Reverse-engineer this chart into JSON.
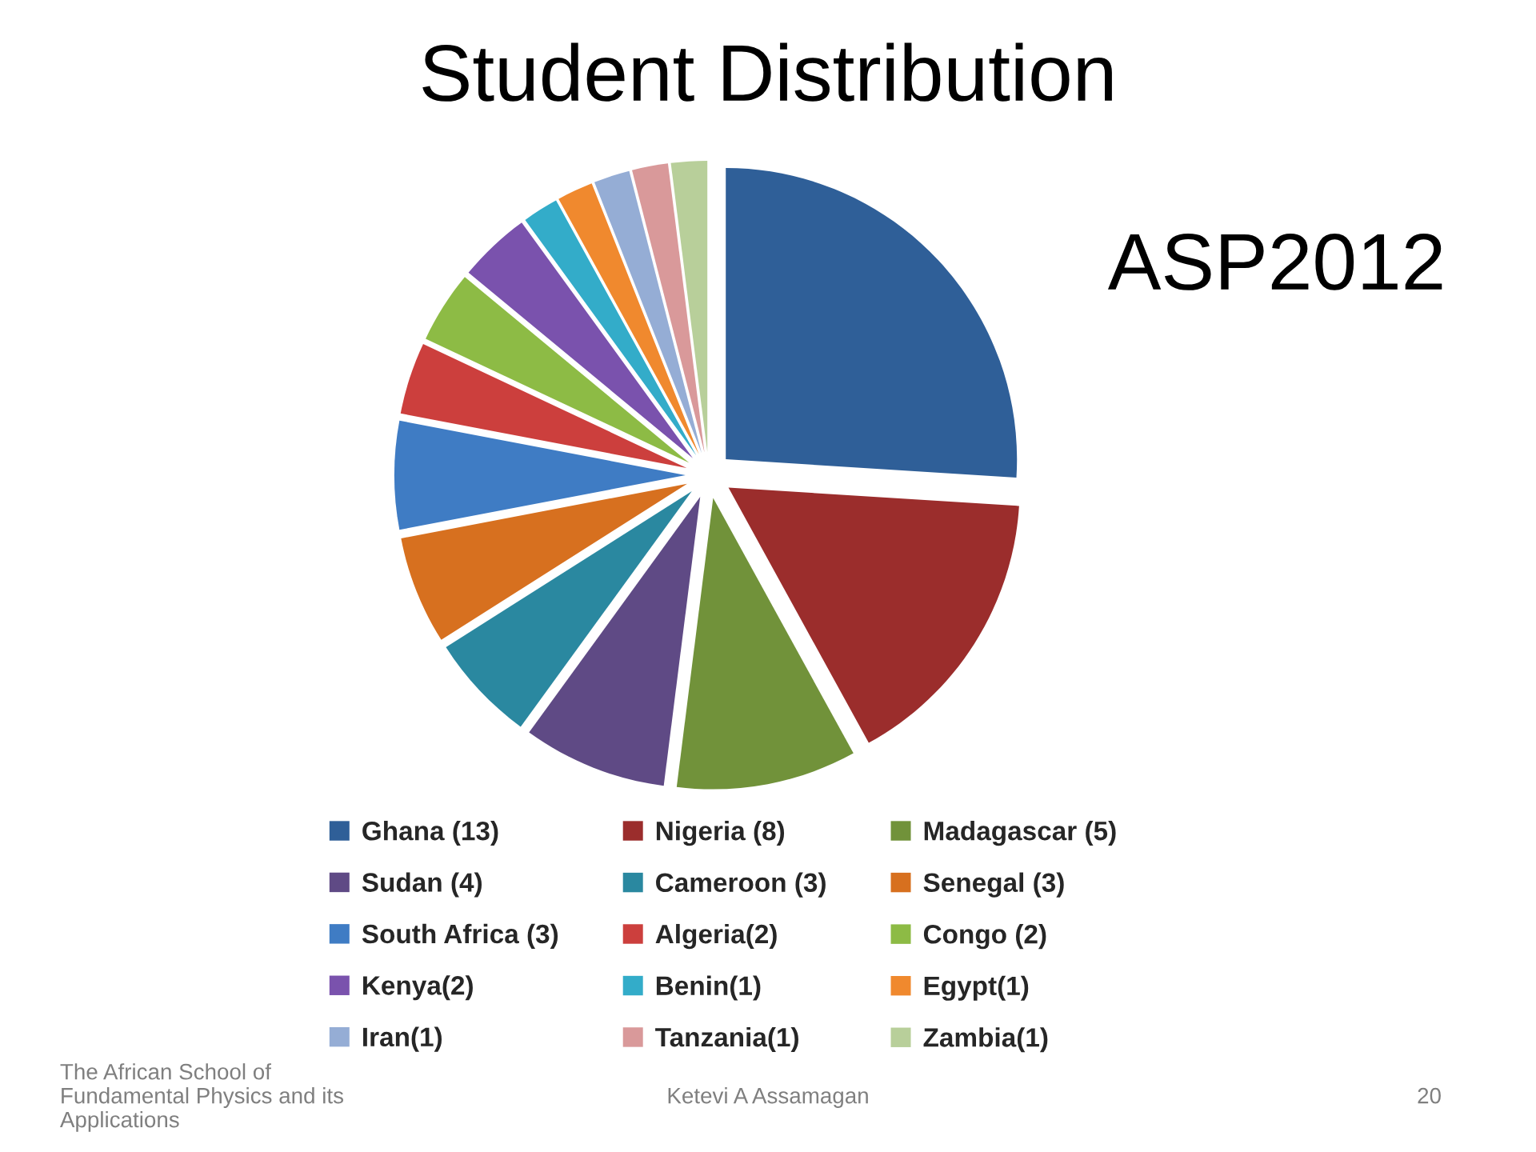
{
  "chart_data": {
    "type": "pie",
    "title": "Student Distribution",
    "categories": [
      "Ghana (13)",
      "Nigeria (8)",
      "Madagascar (5)",
      "Sudan (4)",
      "Cameroon (3)",
      "Senegal (3)",
      "South Africa (3)",
      "Algeria(2)",
      "Congo (2)",
      "Kenya(2)",
      "Benin(1)",
      "Egypt(1)",
      "Iran(1)",
      "Tanzania(1)",
      "Zambia(1)"
    ],
    "values": [
      13,
      8,
      5,
      4,
      3,
      3,
      3,
      2,
      2,
      2,
      1,
      1,
      1,
      1,
      1
    ],
    "colors": [
      "#2f5f98",
      "#9b2d2c",
      "#71923a",
      "#5f4a85",
      "#2a88a0",
      "#d7701f",
      "#3f7cc4",
      "#cc3f3d",
      "#8dbb45",
      "#7a52ad",
      "#33acc9",
      "#f0892e",
      "#95add5",
      "#d9999a",
      "#b8cf9a"
    ],
    "legend": "bottom",
    "annotations": [
      "ASP2012",
      "The African School of Fundamental Physics and its Applications",
      "Ketevi A Assamagan",
      "20"
    ]
  }
}
